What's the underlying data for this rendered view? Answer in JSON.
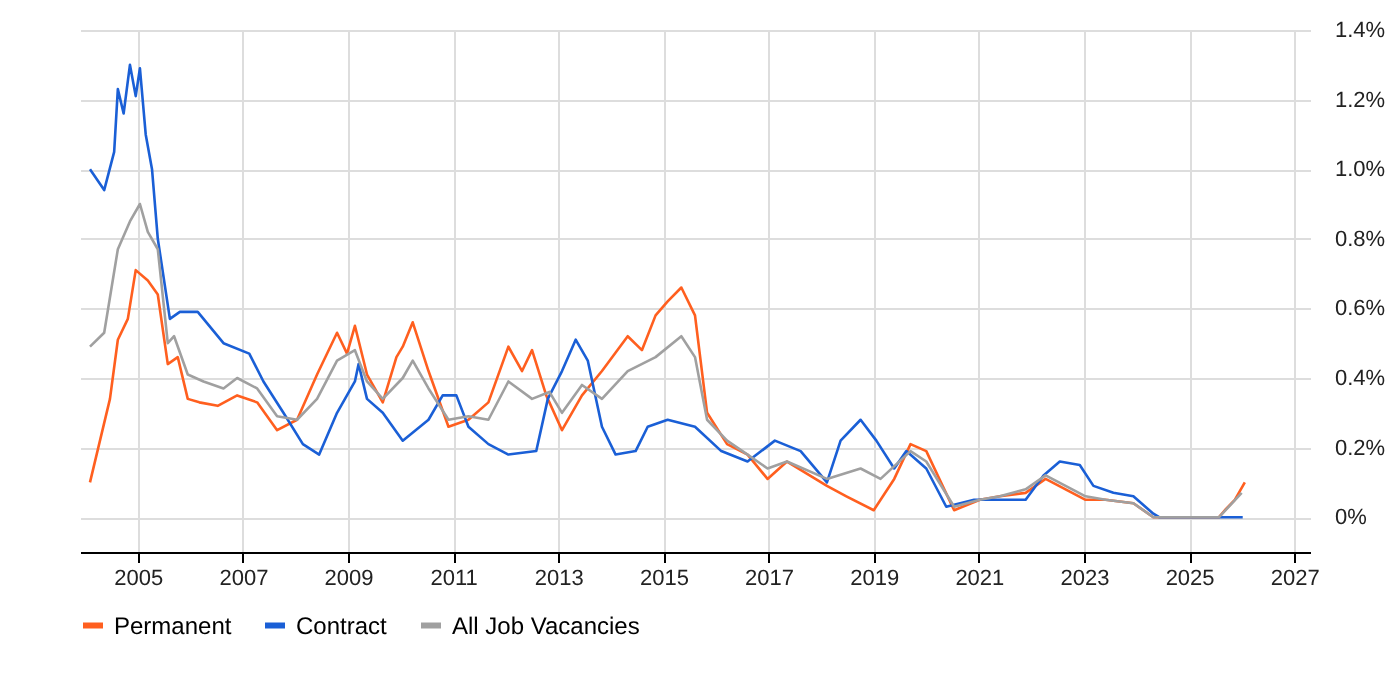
{
  "chart_data": {
    "type": "line",
    "xlim": [
      2003.9,
      2027.3
    ],
    "xticks": [
      2005,
      2007,
      2009,
      2011,
      2013,
      2015,
      2017,
      2019,
      2021,
      2023,
      2025,
      2027
    ],
    "ylim": [
      -0.1,
      1.4
    ],
    "yticks": [
      {
        "value": 0,
        "label": "0%"
      },
      {
        "value": 0.2,
        "label": "0.2%"
      },
      {
        "value": 0.4,
        "label": "0.4%"
      },
      {
        "value": 0.6,
        "label": "0.6%"
      },
      {
        "value": 0.8,
        "label": "0.8%"
      },
      {
        "value": 1.0,
        "label": "1.0%"
      },
      {
        "value": 1.2,
        "label": "1.2%"
      },
      {
        "value": 1.4,
        "label": "1.4%"
      }
    ],
    "grid": true,
    "legend": "bottom",
    "series": [
      {
        "name": "Permanent",
        "color": "#ff5f1f",
        "x": [
          2004.09,
          2004.47,
          2004.62,
          2004.81,
          2004.96,
          2005.19,
          2005.38,
          2005.57,
          2005.76,
          2005.95,
          2006.17,
          2006.52,
          2006.89,
          2007.27,
          2007.65,
          2008.03,
          2008.41,
          2008.79,
          2008.98,
          2009.13,
          2009.36,
          2009.66,
          2009.92,
          2010.04,
          2010.23,
          2010.53,
          2010.91,
          2011.29,
          2011.67,
          2012.05,
          2012.31,
          2012.5,
          2012.77,
          2013.07,
          2013.45,
          2013.83,
          2014.32,
          2014.59,
          2014.85,
          2015.08,
          2015.34,
          2015.6,
          2015.83,
          2016.21,
          2016.6,
          2016.98,
          2017.35,
          2018.11,
          2018.48,
          2019.0,
          2019.39,
          2019.7,
          2020.0,
          2020.53,
          2021.02,
          2021.4,
          2021.89,
          2022.27,
          2022.65,
          2023.03,
          2023.41,
          2023.94,
          2024.32,
          2024.43,
          2025.57,
          2025.68,
          2025.87,
          2026.06
        ],
        "values": [
          0.1,
          0.34,
          0.51,
          0.57,
          0.71,
          0.68,
          0.64,
          0.44,
          0.46,
          0.34,
          0.33,
          0.32,
          0.35,
          0.33,
          0.25,
          0.28,
          0.41,
          0.53,
          0.47,
          0.55,
          0.41,
          0.33,
          0.46,
          0.49,
          0.56,
          0.42,
          0.26,
          0.28,
          0.33,
          0.49,
          0.42,
          0.48,
          0.35,
          0.25,
          0.35,
          0.42,
          0.52,
          0.48,
          0.58,
          0.62,
          0.66,
          0.58,
          0.3,
          0.21,
          0.18,
          0.11,
          0.16,
          0.09,
          0.06,
          0.02,
          0.11,
          0.21,
          0.19,
          0.02,
          0.05,
          0.06,
          0.07,
          0.11,
          0.08,
          0.05,
          0.05,
          0.04,
          0.0,
          0.0,
          0.0,
          0.02,
          0.05,
          0.1
        ]
      },
      {
        "name": "Contract",
        "color": "#1a5fd6",
        "x": [
          2004.09,
          2004.36,
          2004.55,
          2004.62,
          2004.73,
          2004.85,
          2004.96,
          2005.04,
          2005.15,
          2005.27,
          2005.38,
          2005.61,
          2005.8,
          2006.14,
          2006.63,
          2007.12,
          2007.39,
          2007.77,
          2008.14,
          2008.45,
          2008.79,
          2009.13,
          2009.2,
          2009.36,
          2009.66,
          2010.04,
          2010.53,
          2010.8,
          2011.06,
          2011.29,
          2011.67,
          2012.05,
          2012.58,
          2012.8,
          2013.07,
          2013.33,
          2013.56,
          2013.83,
          2014.09,
          2014.47,
          2014.7,
          2015.08,
          2015.6,
          2016.1,
          2016.6,
          2017.12,
          2017.61,
          2018.11,
          2018.37,
          2018.75,
          2019.05,
          2019.39,
          2019.62,
          2020.0,
          2020.38,
          2020.91,
          2021.4,
          2021.89,
          2022.23,
          2022.54,
          2022.92,
          2023.18,
          2023.56,
          2023.94,
          2024.32,
          2024.43,
          2026.02
        ],
        "values": [
          1.0,
          0.94,
          1.05,
          1.23,
          1.16,
          1.3,
          1.21,
          1.29,
          1.1,
          1.0,
          0.8,
          0.57,
          0.59,
          0.59,
          0.5,
          0.47,
          0.39,
          0.3,
          0.21,
          0.18,
          0.3,
          0.39,
          0.44,
          0.34,
          0.3,
          0.22,
          0.28,
          0.35,
          0.35,
          0.26,
          0.21,
          0.18,
          0.19,
          0.34,
          0.42,
          0.51,
          0.45,
          0.26,
          0.18,
          0.19,
          0.26,
          0.28,
          0.26,
          0.19,
          0.16,
          0.22,
          0.19,
          0.1,
          0.22,
          0.28,
          0.22,
          0.14,
          0.19,
          0.14,
          0.03,
          0.05,
          0.05,
          0.05,
          0.12,
          0.16,
          0.15,
          0.09,
          0.07,
          0.06,
          0.01,
          0.0,
          0.0
        ]
      },
      {
        "name": "All Job Vacancies",
        "color": "#a0a0a0",
        "x": [
          2004.09,
          2004.36,
          2004.62,
          2004.85,
          2005.04,
          2005.19,
          2005.38,
          2005.57,
          2005.69,
          2005.95,
          2006.25,
          2006.63,
          2006.89,
          2007.27,
          2007.65,
          2008.03,
          2008.41,
          2008.79,
          2009.13,
          2009.36,
          2009.66,
          2010.04,
          2010.23,
          2010.53,
          2010.91,
          2011.29,
          2011.67,
          2012.05,
          2012.5,
          2012.83,
          2013.07,
          2013.45,
          2013.83,
          2014.32,
          2014.85,
          2015.34,
          2015.6,
          2015.83,
          2016.21,
          2016.6,
          2016.98,
          2017.35,
          2018.11,
          2018.75,
          2019.13,
          2019.7,
          2020.0,
          2020.53,
          2021.02,
          2021.4,
          2021.89,
          2022.27,
          2022.65,
          2023.03,
          2023.41,
          2023.94,
          2024.32,
          2024.43,
          2025.57,
          2026.0
        ],
        "values": [
          0.49,
          0.53,
          0.77,
          0.85,
          0.9,
          0.82,
          0.77,
          0.5,
          0.52,
          0.41,
          0.39,
          0.37,
          0.4,
          0.37,
          0.29,
          0.28,
          0.34,
          0.45,
          0.48,
          0.39,
          0.34,
          0.4,
          0.45,
          0.37,
          0.28,
          0.29,
          0.28,
          0.39,
          0.34,
          0.36,
          0.3,
          0.38,
          0.34,
          0.42,
          0.46,
          0.52,
          0.46,
          0.28,
          0.22,
          0.18,
          0.14,
          0.16,
          0.11,
          0.14,
          0.11,
          0.19,
          0.16,
          0.03,
          0.05,
          0.06,
          0.08,
          0.12,
          0.09,
          0.06,
          0.05,
          0.04,
          0.0,
          0.0,
          0.0,
          0.07
        ]
      }
    ]
  }
}
